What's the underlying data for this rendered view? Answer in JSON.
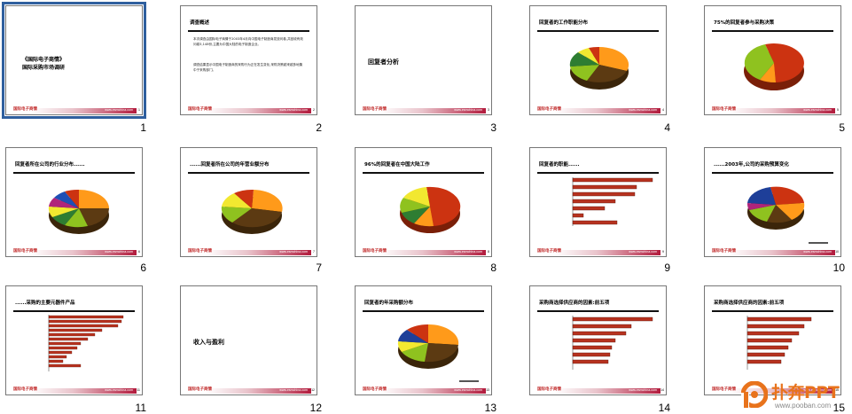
{
  "footer": {
    "brand": "国际电子商情",
    "url": "www.esmchina.com"
  },
  "slides": [
    {
      "number": "1",
      "type": "cover",
      "lines": [
        "《国际电子商情》",
        "国际采购市场调研"
      ],
      "selected": true
    },
    {
      "number": "2",
      "type": "text",
      "title": "调查概述",
      "paragraphs": [
        "本次调查由国际电子商情于2003年4月向中国电子制造商发放问卷,共回收有效问卷3,148份,主要为中国大陆的电子制造企业。",
        "调查结果显示中国电子制造商的采购行为正在发生变化,采购决策越来越多地集中于采购部门。"
      ]
    },
    {
      "number": "3",
      "type": "section",
      "label": "回复者分析"
    },
    {
      "number": "4",
      "type": "pie",
      "title": "回复者的工作职能分布"
    },
    {
      "number": "5",
      "type": "pie",
      "title": "75%的回复者参与采购决策"
    },
    {
      "number": "6",
      "type": "pie",
      "title": "回复者所在公司的行业分布......"
    },
    {
      "number": "7",
      "type": "pie",
      "title": "......回复者所在公司的年营业额分布"
    },
    {
      "number": "8",
      "type": "pie",
      "title": "96%的回复者在中国大陆工作"
    },
    {
      "number": "9",
      "type": "bar",
      "title": "回复者的职能......"
    },
    {
      "number": "10",
      "type": "pie",
      "title": "......2003年,公司的采购预算变化"
    },
    {
      "number": "11",
      "type": "bar",
      "title": "......采购的主要元器件产品"
    },
    {
      "number": "12",
      "type": "section",
      "label": "收入与盈利"
    },
    {
      "number": "13",
      "type": "pie",
      "title": "回复者的年采购额分布"
    },
    {
      "number": "14",
      "type": "bar",
      "title": "采购商选择供应商的因素:前五项"
    },
    {
      "number": "15",
      "type": "bar",
      "title": "采购商选择供应商的因素:前五项"
    }
  ],
  "logo": {
    "name": "扑奔PPT",
    "url": "www.pooban.com"
  },
  "colors": {
    "selected_border": "#2f5f9e",
    "footer_red": "#b21a3c",
    "pie_orange": "#ff9a1a",
    "pie_brown": "#5c3a12",
    "pie_green": "#8fc21f",
    "pie_red": "#cc3311",
    "bar_red": "#b7321f"
  }
}
